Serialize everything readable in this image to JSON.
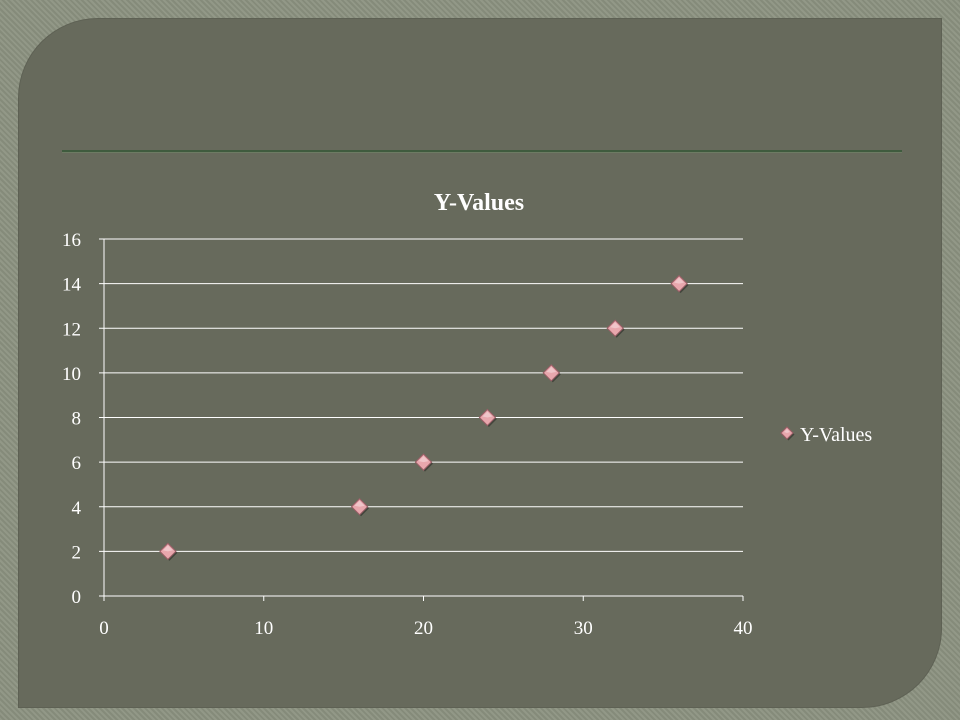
{
  "chart_data": {
    "type": "scatter",
    "title": "Y-Values",
    "xlabel": "",
    "ylabel": "",
    "xlim": [
      0,
      40
    ],
    "ylim": [
      0,
      16
    ],
    "x_ticks": [
      0,
      10,
      20,
      30,
      40
    ],
    "y_ticks": [
      0,
      2,
      4,
      6,
      8,
      10,
      12,
      14,
      16
    ],
    "grid": "horizontal",
    "legend_position": "right",
    "series": [
      {
        "name": "Y-Values",
        "marker": "diamond",
        "color": "#e8a7ad",
        "points": [
          {
            "x": 4,
            "y": 2
          },
          {
            "x": 16,
            "y": 4
          },
          {
            "x": 20,
            "y": 6
          },
          {
            "x": 24,
            "y": 8
          },
          {
            "x": 28,
            "y": 10
          },
          {
            "x": 32,
            "y": 12
          },
          {
            "x": 36,
            "y": 14
          }
        ]
      }
    ]
  },
  "colors": {
    "slide_background": "#676a5c",
    "frame_background": "#8c9281",
    "title_rule": "#3f5b3e",
    "gridline": "#ffffff",
    "text": "#ffffff"
  }
}
